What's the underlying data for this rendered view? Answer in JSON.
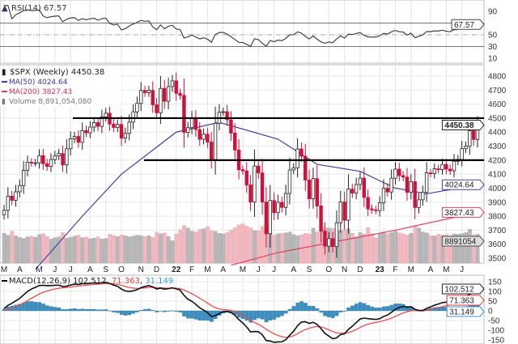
{
  "chart_data": {
    "type": "candlestick",
    "symbol_title": "$SPX (Weekly) 4450.38",
    "months": [
      "M",
      "A",
      "M",
      "J",
      "J",
      "A",
      "S",
      "O",
      "N",
      "D",
      "22",
      "F",
      "M",
      "A",
      "M",
      "J",
      "J",
      "A",
      "S",
      "O",
      "N",
      "D",
      "23",
      "F",
      "M",
      "A",
      "M",
      "J"
    ],
    "rsi": {
      "label": "RSI(14) 67.57",
      "value": "67.57",
      "ticks": [
        "90",
        "50",
        "30",
        "10"
      ],
      "levels": [
        70,
        50,
        30
      ]
    },
    "price": {
      "ticks": [
        "4800",
        "4700",
        "4600",
        "4500",
        "4400",
        "4300",
        "4200",
        "4100",
        "4000",
        "3900",
        "3800",
        "3700",
        "3600",
        "3500"
      ],
      "ylim": [
        3450,
        4850
      ],
      "last": "4450.38",
      "closes": [
        3842,
        3943,
        3913,
        3974,
        4019,
        4128,
        4185,
        4180,
        4181,
        4232,
        4174,
        4155,
        4204,
        4230,
        4247,
        4166,
        4281,
        4352,
        4369,
        4327,
        4411,
        4395,
        4436,
        4468,
        4441,
        4509,
        4535,
        4458,
        4433,
        4455,
        4357,
        4391,
        4471,
        4545,
        4605,
        4697,
        4682,
        4698,
        4595,
        4538,
        4712,
        4620,
        4725,
        4766,
        4677,
        4662,
        4398,
        4432,
        4500,
        4418,
        4349,
        4385,
        4329,
        4204,
        4463,
        4543,
        4546,
        4488,
        4393,
        4272,
        4132,
        4123,
        4023,
        3901,
        4158,
        4109,
        3901,
        3675,
        3912,
        3825,
        3899,
        3863,
        3962,
        4130,
        4145,
        4280,
        4228,
        4058,
        3924,
        4068,
        3873,
        3693,
        3586,
        3640,
        3583,
        3753,
        3901,
        3771,
        3993,
        3965,
        4026,
        4072,
        3934,
        3852,
        3845,
        3840,
        3895,
        3999,
        3973,
        4071,
        4136,
        4090,
        4079,
        3970,
        4046,
        3862,
        3917,
        3971,
        4109,
        4105,
        4138,
        4133,
        4169,
        4136,
        4124,
        4192,
        4205,
        4282,
        4299,
        4410,
        4348,
        4450.38
      ],
      "first_open": 3811,
      "support_lines": [
        4500,
        4200
      ]
    },
    "ma50": {
      "label": "MA(50) 4024.64",
      "value": "4024.64",
      "color": "#4040a0",
      "points": [
        [
          8,
          3420
        ],
        [
          20,
          3800
        ],
        [
          30,
          4100
        ],
        [
          44,
          4400
        ],
        [
          55,
          4470
        ],
        [
          70,
          4350
        ],
        [
          80,
          4170
        ],
        [
          91,
          4120
        ],
        [
          100,
          4000
        ],
        [
          108,
          3960
        ],
        [
          121,
          4024.64
        ]
      ]
    },
    "ma200": {
      "label": "MA(200) 3827.43",
      "value": "3827.43",
      "color": "#e04060",
      "points": [
        [
          58,
          3450
        ],
        [
          70,
          3540
        ],
        [
          85,
          3620
        ],
        [
          100,
          3700
        ],
        [
          121,
          3827.43
        ]
      ]
    },
    "volume": {
      "label": "Volume 8,891,054,080",
      "tag": "8891054",
      "values_billions": [
        9.2,
        8.6,
        9.8,
        8.4,
        7.9,
        7.6,
        8.1,
        8.3,
        8.0,
        8.8,
        9.1,
        8.2,
        7.4,
        7.8,
        8.1,
        9.4,
        7.7,
        7.9,
        8.3,
        8.6,
        7.8,
        8.0,
        7.5,
        7.7,
        8.1,
        7.4,
        7.6,
        8.9,
        8.5,
        8.2,
        8.7,
        8.4,
        8.1,
        8.3,
        8.6,
        8.5,
        8.2,
        8.4,
        7.9,
        9.6,
        9.1,
        9.3,
        8.2,
        6.9,
        9.0,
        10.3,
        11.6,
        10.8,
        9.8,
        9.6,
        10.4,
        10.6,
        11.2,
        10.0,
        9.8,
        9.2,
        9.0,
        9.4,
        10.1,
        10.9,
        11.8,
        12.1,
        11.4,
        10.9,
        10.0,
        9.9,
        11.3,
        12.3,
        9.4,
        8.6,
        9.1,
        9.2,
        9.3,
        9.6,
        8.8,
        8.4,
        8.7,
        9.2,
        9.0,
        10.8,
        9.6,
        10.4,
        10.9,
        10.8,
        10.7,
        10.2,
        10.0,
        10.4,
        10.6,
        9.2,
        8.1,
        9.4,
        9.0,
        10.9,
        9.0,
        7.8,
        9.2,
        9.6,
        9.1,
        9.4,
        9.9,
        9.3,
        9.0,
        8.7,
        9.2,
        11.4,
        10.8,
        9.6,
        9.3,
        8.5,
        8.4,
        8.9,
        8.6,
        8.8,
        8.5,
        9.0,
        8.9,
        9.1,
        9.4,
        10.4,
        8.7,
        8.89
      ]
    },
    "macd": {
      "label_name": "MACD(12,26,9)",
      "macd": "102.512",
      "signal": "71.363",
      "hist": "31.149",
      "ticks": [
        "150",
        "100",
        "50",
        "0",
        "-50",
        "-100",
        "-150"
      ],
      "colors": {
        "macd": "#111111",
        "signal": "#e85050",
        "hist": "#3a8fc0"
      }
    }
  }
}
